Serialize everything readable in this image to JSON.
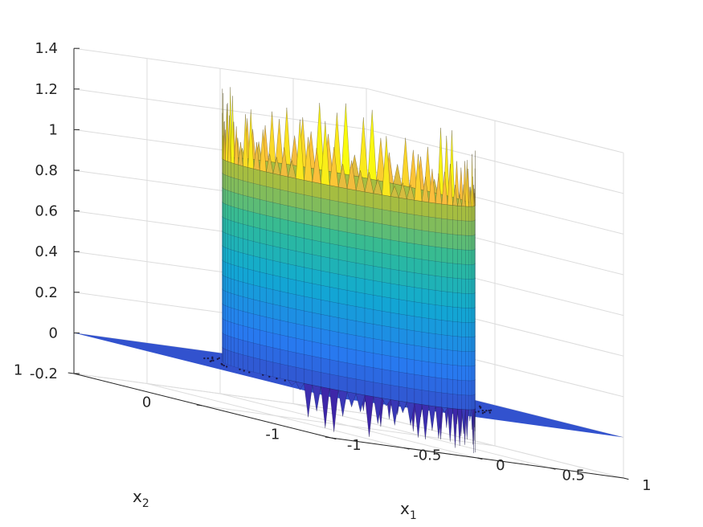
{
  "chart_data": {
    "type": "surface",
    "title": "",
    "xlabel": {
      "main": "x",
      "sub": "1"
    },
    "ylabel": {
      "main": "x",
      "sub": "2"
    },
    "zlabel": "",
    "xlim": [
      -1,
      1
    ],
    "ylim": [
      -1,
      1
    ],
    "zlim": [
      -0.2,
      1.4
    ],
    "xticks": [
      {
        "value": -1,
        "label": "-1"
      },
      {
        "value": -0.5,
        "label": "-0.5"
      },
      {
        "value": 0,
        "label": "0"
      },
      {
        "value": 0.5,
        "label": "0.5"
      },
      {
        "value": 1,
        "label": "1"
      }
    ],
    "yticks": [
      {
        "value": -1,
        "label": "-1"
      },
      {
        "value": 0,
        "label": "0"
      },
      {
        "value": 1,
        "label": "1"
      }
    ],
    "zticks": [
      {
        "value": -0.2,
        "label": "-0.2"
      },
      {
        "value": 0,
        "label": "0"
      },
      {
        "value": 0.2,
        "label": "0.2"
      },
      {
        "value": 0.4,
        "label": "0.4"
      },
      {
        "value": 0.6,
        "label": "0.6"
      },
      {
        "value": 0.8,
        "label": "0.8"
      },
      {
        "value": 1,
        "label": "1"
      },
      {
        "value": 1.2,
        "label": "1.2"
      },
      {
        "value": 1.4,
        "label": "1.4"
      }
    ],
    "grid": true,
    "colormap": "parula",
    "colors": {
      "low": "#3e26a8",
      "mid": "#1fb5a4",
      "high": "#f9fb0e"
    },
    "surface": {
      "description_shape": "cylinder plateau of height ~1 over radius ~0.65, flat zero outside, Gibbs oscillations at rim",
      "plateau_height": 1.0,
      "plateau_radius": 0.65,
      "rim_overshoot_max": 1.35,
      "rim_undershoot_min": -0.22
    }
  }
}
